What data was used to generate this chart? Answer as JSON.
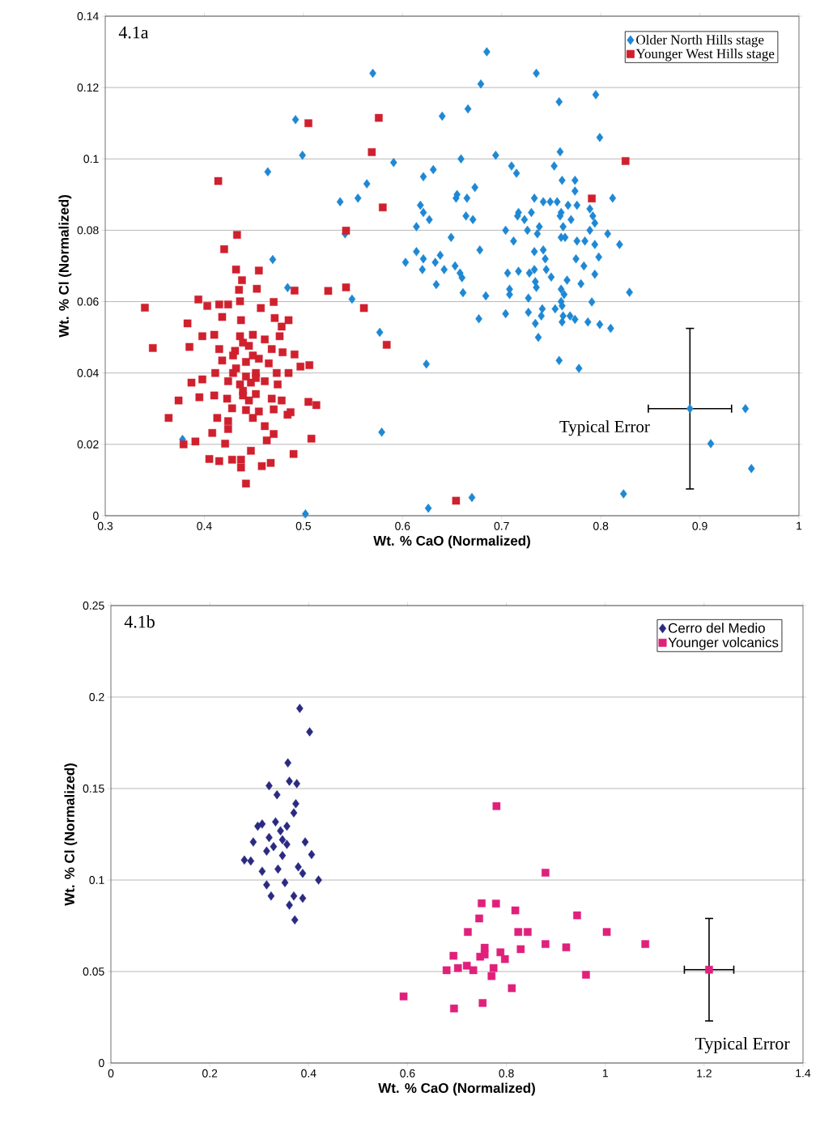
{
  "chart_data": [
    {
      "type": "scatter",
      "xlabel": "Wt. % CaO (Normalized)",
      "ylabel": "Wt. % Cl (Normalized)",
      "xlim": [
        0.3,
        1
      ],
      "ylim": [
        0,
        0.14
      ],
      "xticks": [
        0.3,
        0.4,
        0.5,
        0.6,
        0.7,
        0.8,
        0.9,
        1
      ],
      "yticks": [
        0,
        0.02,
        0.04,
        0.06,
        0.08,
        0.1,
        0.12,
        0.14
      ],
      "grid": "y",
      "legend": "top right",
      "annotations": [
        "4.1a",
        {
          "text": "Typical Error",
          "x": 0.89,
          "y": 0.03
        }
      ],
      "series": [
        {
          "name": "Older North Hills stage",
          "color": "#1e88d4",
          "marker": "diamond",
          "x": [
            0.492,
            0.499,
            0.464,
            0.469,
            0.484,
            0.378,
            0.502,
            0.685,
            0.57,
            0.735,
            0.679,
            0.758,
            0.795,
            0.666,
            0.64,
            0.799,
            0.591,
            0.659,
            0.694,
            0.759,
            0.71,
            0.715,
            0.753,
            0.631,
            0.621,
            0.564,
            0.555,
            0.537,
            0.673,
            0.655,
            0.654,
            0.665,
            0.761,
            0.774,
            0.774,
            0.812,
            0.733,
            0.742,
            0.749,
            0.756,
            0.767,
            0.776,
            0.618,
            0.621,
            0.627,
            0.614,
            0.664,
            0.671,
            0.717,
            0.716,
            0.723,
            0.73,
            0.76,
            0.759,
            0.789,
            0.792,
            0.794,
            0.77,
            0.762,
            0.738,
            0.726,
            0.736,
            0.704,
            0.789,
            0.807,
            0.76,
            0.764,
            0.542,
            0.649,
            0.712,
            0.776,
            0.784,
            0.794,
            0.819,
            0.614,
            0.678,
            0.733,
            0.742,
            0.638,
            0.621,
            0.633,
            0.603,
            0.744,
            0.775,
            0.798,
            0.62,
            0.642,
            0.653,
            0.658,
            0.706,
            0.717,
            0.728,
            0.733,
            0.745,
            0.783,
            0.66,
            0.75,
            0.766,
            0.794,
            0.634,
            0.734,
            0.735,
            0.78,
            0.661,
            0.684,
            0.708,
            0.708,
            0.76,
            0.763,
            0.829,
            0.549,
            0.727,
            0.76,
            0.761,
            0.791,
            0.741,
            0.754,
            0.727,
            0.704,
            0.677,
            0.74,
            0.762,
            0.769,
            0.774,
            0.761,
            0.734,
            0.787,
            0.799,
            0.81,
            0.737,
            0.577,
            0.624,
            0.758,
            0.778,
            0.579,
            0.946,
            0.911,
            0.952,
            0.823,
            0.67,
            0.626
          ],
          "values": [
            0.111,
            0.101,
            0.0964,
            0.0718,
            0.0639,
            0.0214,
            0.0005,
            0.13,
            0.124,
            0.124,
            0.121,
            0.116,
            0.118,
            0.114,
            0.112,
            0.106,
            0.099,
            0.1,
            0.101,
            0.102,
            0.098,
            0.096,
            0.098,
            0.097,
            0.095,
            0.093,
            0.089,
            0.088,
            0.092,
            0.09,
            0.089,
            0.089,
            0.094,
            0.094,
            0.091,
            0.089,
            0.089,
            0.088,
            0.088,
            0.088,
            0.087,
            0.087,
            0.087,
            0.085,
            0.083,
            0.081,
            0.084,
            0.083,
            0.085,
            0.084,
            0.083,
            0.085,
            0.085,
            0.084,
            0.086,
            0.084,
            0.082,
            0.083,
            0.081,
            0.081,
            0.08,
            0.079,
            0.08,
            0.08,
            0.079,
            0.078,
            0.078,
            0.079,
            0.078,
            0.077,
            0.077,
            0.077,
            0.076,
            0.076,
            0.074,
            0.0745,
            0.074,
            0.0745,
            0.073,
            0.072,
            0.071,
            0.071,
            0.072,
            0.072,
            0.0725,
            0.069,
            0.069,
            0.07,
            0.068,
            0.068,
            0.0685,
            0.068,
            0.069,
            0.069,
            0.07,
            0.0667,
            0.0669,
            0.066,
            0.0677,
            0.0648,
            0.0656,
            0.064,
            0.065,
            0.0625,
            0.0616,
            0.0635,
            0.062,
            0.0635,
            0.062,
            0.0626,
            0.0607,
            0.061,
            0.06,
            0.0588,
            0.0599,
            0.058,
            0.058,
            0.057,
            0.0566,
            0.0552,
            0.056,
            0.056,
            0.056,
            0.055,
            0.0543,
            0.0539,
            0.0543,
            0.0536,
            0.0525,
            0.05,
            0.0514,
            0.0425,
            0.0435,
            0.0413,
            0.0234,
            0.03,
            0.0202,
            0.0132,
            0.0061,
            0.0051,
            0.0021
          ]
        },
        {
          "name": "Younger West Hills stage",
          "color": "#d0202e",
          "marker": "square",
          "x": [
            0.576,
            0.569,
            0.825,
            0.58,
            0.791,
            0.543,
            0.525,
            0.543,
            0.561,
            0.584,
            0.654,
            0.505,
            0.414,
            0.433,
            0.42,
            0.34,
            0.348,
            0.432,
            0.455,
            0.438,
            0.453,
            0.435,
            0.491,
            0.394,
            0.403,
            0.415,
            0.424,
            0.436,
            0.457,
            0.47,
            0.383,
            0.418,
            0.437,
            0.471,
            0.485,
            0.478,
            0.398,
            0.41,
            0.436,
            0.449,
            0.461,
            0.476,
            0.385,
            0.415,
            0.431,
            0.445,
            0.468,
            0.479,
            0.491,
            0.418,
            0.442,
            0.455,
            0.465,
            0.497,
            0.506,
            0.411,
            0.429,
            0.452,
            0.473,
            0.485,
            0.387,
            0.398,
            0.424,
            0.436,
            0.447,
            0.461,
            0.474,
            0.395,
            0.41,
            0.423,
            0.439,
            0.452,
            0.468,
            0.478,
            0.374,
            0.505,
            0.513,
            0.428,
            0.442,
            0.455,
            0.47,
            0.487,
            0.484,
            0.413,
            0.424,
            0.449,
            0.364,
            0.424,
            0.461,
            0.408,
            0.47,
            0.463,
            0.508,
            0.391,
            0.379,
            0.421,
            0.447,
            0.49,
            0.405,
            0.415,
            0.428,
            0.437,
            0.437,
            0.458,
            0.467,
            0.442,
            0.439,
            0.445,
            0.432,
            0.442,
            0.449,
            0.429,
            0.439,
            0.452
          ],
          "values": [
            0.1115,
            0.1019,
            0.0994,
            0.0864,
            0.0889,
            0.0799,
            0.063,
            0.064,
            0.0582,
            0.0479,
            0.0042,
            0.11,
            0.0938,
            0.0787,
            0.0747,
            0.0583,
            0.047,
            0.069,
            0.0687,
            0.066,
            0.0636,
            0.0633,
            0.0631,
            0.0606,
            0.0588,
            0.0592,
            0.0592,
            0.0601,
            0.0582,
            0.0599,
            0.0539,
            0.0557,
            0.0548,
            0.0554,
            0.0548,
            0.053,
            0.0503,
            0.0507,
            0.0503,
            0.0507,
            0.0494,
            0.0503,
            0.0473,
            0.0467,
            0.0462,
            0.0476,
            0.0467,
            0.0458,
            0.0452,
            0.0435,
            0.0431,
            0.044,
            0.0427,
            0.0418,
            0.0422,
            0.04,
            0.04,
            0.04,
            0.04,
            0.04,
            0.0373,
            0.0382,
            0.0377,
            0.0368,
            0.0373,
            0.0377,
            0.0368,
            0.0332,
            0.0337,
            0.0328,
            0.0337,
            0.0341,
            0.0328,
            0.0323,
            0.0323,
            0.0319,
            0.031,
            0.0301,
            0.0296,
            0.0292,
            0.0298,
            0.029,
            0.0283,
            0.0274,
            0.0265,
            0.0274,
            0.0274,
            0.0243,
            0.0251,
            0.0232,
            0.0229,
            0.0211,
            0.0216,
            0.0208,
            0.02,
            0.0202,
            0.0182,
            0.0173,
            0.0159,
            0.0153,
            0.0157,
            0.0157,
            0.0135,
            0.0139,
            0.0148,
            0.009,
            0.035,
            0.0323,
            0.0413,
            0.039,
            0.0449,
            0.0449,
            0.0485,
            0.0386
          ]
        },
        {
          "color": "#1e88d4",
          "marker": "diamond",
          "x": [
            0.89
          ],
          "values": [
            0.03
          ],
          "errors": [
            0.0225
          ],
          "xerrors": [
            0.042
          ]
        }
      ]
    },
    {
      "type": "scatter",
      "xlabel": "Wt. % CaO (Normalized)",
      "ylabel": "Wt. % Cl (Normalized)",
      "xlim": [
        0,
        1.4
      ],
      "ylim": [
        0,
        0.25
      ],
      "xticks": [
        0,
        0.2,
        0.4,
        0.6,
        0.8,
        1,
        1.2,
        1.4
      ],
      "yticks": [
        0,
        0.05,
        0.1,
        0.15,
        0.2,
        0.25
      ],
      "grid": "y",
      "legend": "top right",
      "annotations": [
        "4.1b",
        "Typical Error"
      ],
      "series": [
        {
          "name": "Cerro del Medio",
          "color": "#2b2a82",
          "marker": "diamond",
          "x": [
            0.382,
            0.402,
            0.358,
            0.32,
            0.361,
            0.376,
            0.336,
            0.374,
            0.37,
            0.297,
            0.333,
            0.356,
            0.288,
            0.32,
            0.347,
            0.393,
            0.27,
            0.283,
            0.315,
            0.347,
            0.406,
            0.306,
            0.338,
            0.379,
            0.42,
            0.315,
            0.352,
            0.388,
            0.324,
            0.37,
            0.388,
            0.361,
            0.372,
            0.329,
            0.356,
            0.343,
            0.306
          ],
          "values": [
            0.1938,
            0.181,
            0.164,
            0.1515,
            0.154,
            0.1527,
            0.1466,
            0.1417,
            0.1367,
            0.1294,
            0.1318,
            0.1294,
            0.1208,
            0.1232,
            0.122,
            0.1208,
            0.1109,
            0.1104,
            0.1158,
            0.1134,
            0.1139,
            0.1048,
            0.106,
            0.1072,
            0.1,
            0.0974,
            0.0986,
            0.1036,
            0.0913,
            0.0913,
            0.09,
            0.0863,
            0.0782,
            0.1183,
            0.1195,
            0.1269,
            0.1306
          ]
        },
        {
          "name": "Younger volcanics",
          "color": "#e0207c",
          "marker": "square",
          "x": [
            0.78,
            0.879,
            0.75,
            0.779,
            0.818,
            0.943,
            0.745,
            0.722,
            0.824,
            0.843,
            1.003,
            0.879,
            0.921,
            1.081,
            0.829,
            0.756,
            0.693,
            0.747,
            0.788,
            0.797,
            0.679,
            0.702,
            0.733,
            0.774,
            0.77,
            0.961,
            0.811,
            0.592,
            0.694,
            0.752,
            0.756,
            0.72
          ],
          "values": [
            0.1404,
            0.104,
            0.0873,
            0.0871,
            0.0834,
            0.0807,
            0.079,
            0.0716,
            0.0716,
            0.0716,
            0.0716,
            0.065,
            0.0632,
            0.065,
            0.0622,
            0.063,
            0.0586,
            0.0581,
            0.0605,
            0.0568,
            0.0507,
            0.0519,
            0.0507,
            0.0519,
            0.0475,
            0.0482,
            0.0409,
            0.0364,
            0.0298,
            0.0328,
            0.0593,
            0.0532
          ]
        },
        {
          "color": "#e0207c",
          "marker": "square",
          "x": [
            1.21
          ],
          "values": [
            0.051
          ],
          "errors": [
            0.028
          ],
          "xerrors": [
            0.05
          ]
        }
      ]
    }
  ]
}
